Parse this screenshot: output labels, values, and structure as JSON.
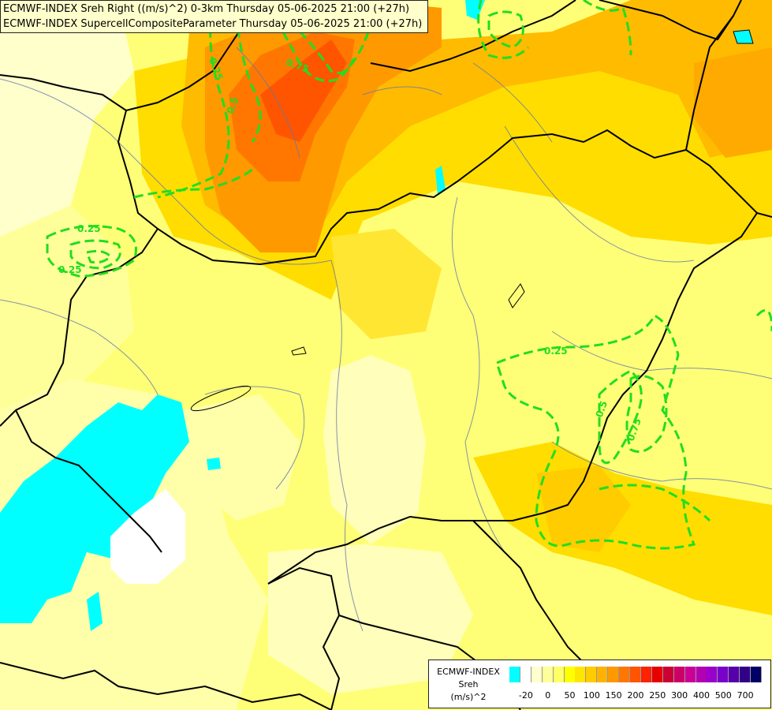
{
  "title": {
    "line1": "ECMWF-INDEX Sreh Right ((m/s)^2) 0-3km Thursday 05-06-2025 21:00 (+27h)",
    "line2": "ECMWF-INDEX SupercellCompositeParameter Thursday 05-06-2025 21:00 (+27h)"
  },
  "contour_labels": [
    "0.25",
    "0.5",
    "0.75",
    "0.25",
    "0.25",
    "0.25",
    "0.5",
    "0.75"
  ],
  "legend": {
    "line1": "ECMWF-INDEX",
    "line2": "Sreh",
    "line3": "(m/s)^2",
    "ticks": [
      "-20",
      "0",
      "50",
      "100",
      "150",
      "200",
      "250",
      "300",
      "400",
      "500",
      "700"
    ],
    "colors": [
      "#00ffff",
      "#ffffff",
      "#ffffcc",
      "#ffff99",
      "#ffff66",
      "#ffff00",
      "#ffe600",
      "#ffcc00",
      "#ffb300",
      "#ff9900",
      "#ff7700",
      "#ff5500",
      "#ff2200",
      "#e60000",
      "#cc0033",
      "#cc0066",
      "#cc0099",
      "#b300b3",
      "#9900cc",
      "#7a00cc",
      "#5500aa",
      "#330088",
      "#000066"
    ]
  },
  "field_colors": {
    "cyan": "#00ffff",
    "white": "#ffffff",
    "pale": "#ffffcc",
    "light": "#ffff99",
    "yellow": "#ffff55",
    "gold": "#ffdd00",
    "amber": "#ffbb00",
    "orange": "#ff9900",
    "deep_orange": "#ff7700",
    "red_orange": "#ff5500",
    "contour": "#22dd22",
    "border": "#000000",
    "river": "#6677aa"
  }
}
